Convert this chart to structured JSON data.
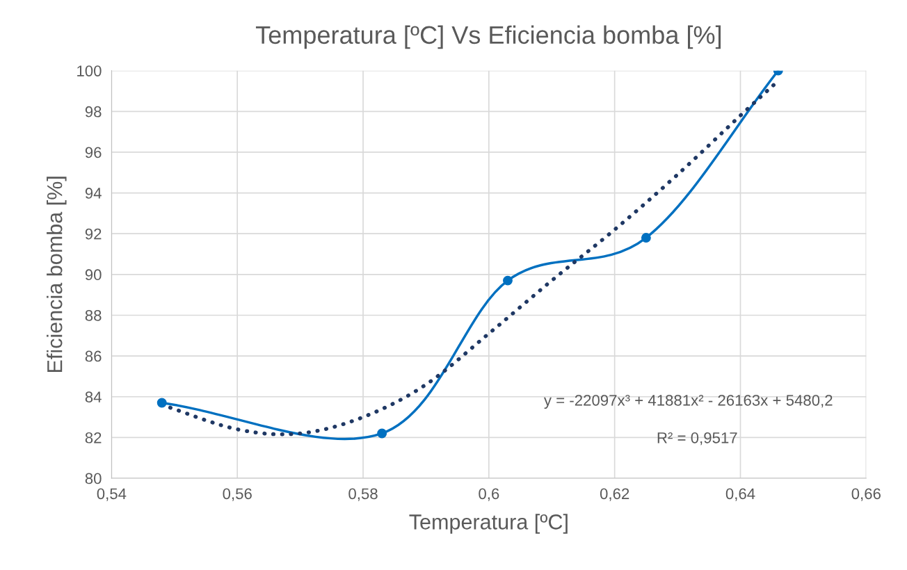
{
  "chart_data": {
    "type": "line",
    "title": "Temperatura [ºC] Vs Eficiencia bomba [%]",
    "xlabel": "Temperatura [ºC]",
    "ylabel": "Eficiencia bomba [%]",
    "series": [
      {
        "color": "#0070c0",
        "marker": "circle",
        "line_style": "solid",
        "x": [
          0.548,
          0.583,
          0.603,
          0.625,
          0.646
        ],
        "values": [
          83.7,
          82.2,
          89.7,
          91.8,
          100
        ]
      },
      {
        "color": "#1f3864",
        "marker": "none",
        "line_style": "dotted",
        "x": [
          0.548,
          0.56,
          0.57,
          0.58,
          0.59,
          0.6,
          0.61,
          0.62,
          0.63,
          0.64,
          0.646
        ],
        "values": [
          83.6,
          82.4,
          82.2,
          83.0,
          84.6,
          87.1,
          89.7,
          92.2,
          94.9,
          97.8,
          99.5
        ]
      }
    ],
    "xlim": [
      0.54,
      0.66
    ],
    "xticks": [
      {
        "value": 0.54,
        "label": "0,54"
      },
      {
        "value": 0.56,
        "label": "0,56"
      },
      {
        "value": 0.58,
        "label": "0,58"
      },
      {
        "value": 0.6,
        "label": "0,6"
      },
      {
        "value": 0.62,
        "label": "0,62"
      },
      {
        "value": 0.64,
        "label": "0,64"
      },
      {
        "value": 0.66,
        "label": "0,66"
      }
    ],
    "ylim": [
      80,
      100
    ],
    "yticks": [
      80,
      82,
      84,
      86,
      88,
      90,
      92,
      94,
      96,
      98,
      100
    ],
    "grid": true,
    "legend": false,
    "annotations": [
      "y = -22097x³ + 41881x² - 26163x + 5480,2",
      "R² = 0,9517"
    ]
  }
}
